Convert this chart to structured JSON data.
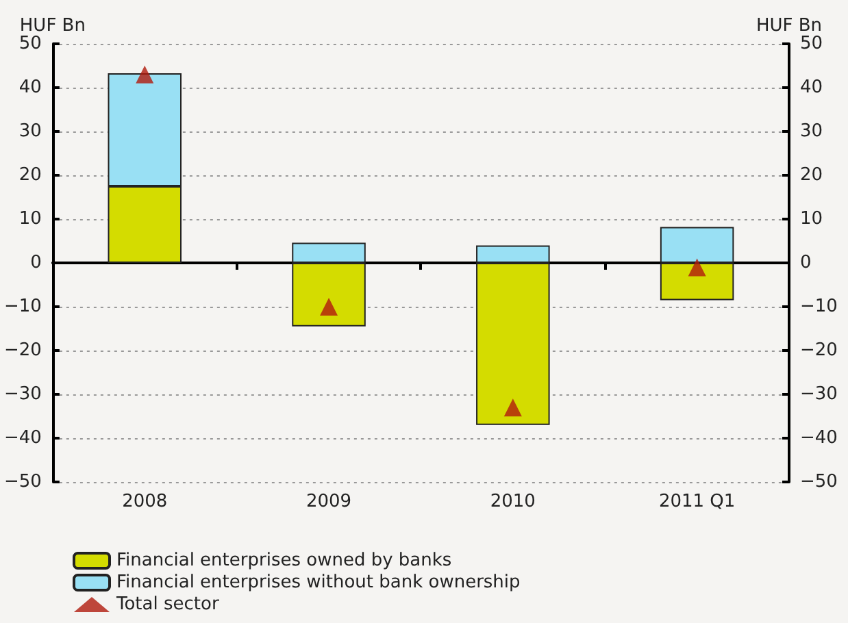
{
  "chart_data": {
    "type": "bar",
    "stacked": true,
    "categories": [
      "2008",
      "2009",
      "2010",
      "2011 Q1"
    ],
    "ylabel": "HUF Bn",
    "y2label": "HUF Bn",
    "ylim": [
      -50,
      50
    ],
    "yticks": [
      -50,
      -40,
      -30,
      -20,
      -10,
      0,
      10,
      20,
      30,
      40,
      50
    ],
    "y2lim": [
      -50,
      50
    ],
    "y2ticks": [
      -50,
      -40,
      -30,
      -20,
      -10,
      0,
      10,
      20,
      30,
      40,
      50
    ],
    "grid": "y",
    "legend": "bottom",
    "series": [
      {
        "name": "Financial enterprises owned by banks",
        "color": "#d4dc00",
        "values": [
          17.5,
          -14.5,
          -37,
          -8.5
        ]
      },
      {
        "name": "Financial enterprises without bank ownership",
        "color": "#99e0f4",
        "values": [
          25.8,
          4.6,
          4,
          8.2
        ]
      },
      {
        "name": "Total sector",
        "type": "scatter",
        "marker": "triangle",
        "color": "#b01a0c",
        "values": [
          43,
          -10,
          -33,
          -1
        ]
      }
    ]
  }
}
